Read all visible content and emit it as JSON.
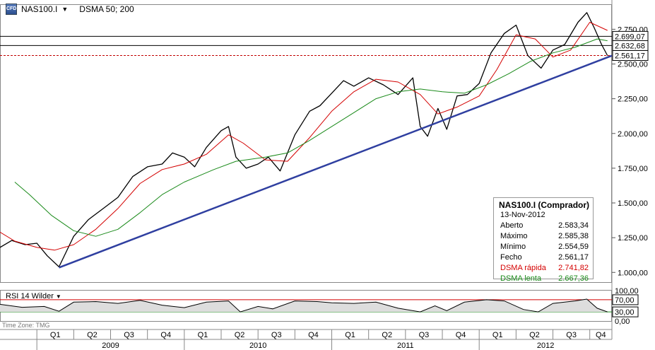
{
  "toolbar": {
    "symbol": "NAS100.I",
    "indicator": "DSMA 50; 200",
    "icon": "cfd-symbol-icon"
  },
  "info_panel": {
    "title": "NAS100.I (Comprador)",
    "date": "13-Nov-2012",
    "rows": [
      {
        "label": "Aberto",
        "value": "2.583,34",
        "color": "#000000"
      },
      {
        "label": "Máximo",
        "value": "2.585,38",
        "color": "#000000"
      },
      {
        "label": "Mínimo",
        "value": "2.554,59",
        "color": "#000000"
      },
      {
        "label": "Fecho",
        "value": "2.561,17",
        "color": "#000000"
      },
      {
        "label": "DSMA rápida",
        "value": "2.741,82",
        "color": "#d40000"
      },
      {
        "label": "DSMA lenta",
        "value": "2.667,36",
        "color": "#1a8a1a"
      }
    ]
  },
  "rsi": {
    "label": "RSI 14 Wilder",
    "upper": 70,
    "lower": 30,
    "axis_labels": [
      "100,00",
      "70,00",
      "30,00",
      "0,00"
    ]
  },
  "time_zone": "Time Zone: TMG",
  "chart_data": {
    "type": "line",
    "title": "NAS100.I",
    "y_tick_labels": [
      "1.000,00",
      "1.250,00",
      "1.500,00",
      "1.750,00",
      "2.000,00",
      "2.250,00",
      "2.500,00",
      "2.750,00"
    ],
    "y_ticks": [
      1000,
      1250,
      1500,
      1750,
      2000,
      2250,
      2500,
      2750
    ],
    "ylim": [
      925,
      2930
    ],
    "price_levels": [
      {
        "value": 2699.07,
        "label": "2.699,07"
      },
      {
        "value": 2632.68,
        "label": "2.632,68"
      },
      {
        "value": 2561.17,
        "label": "2.561,17"
      }
    ],
    "x_years": [
      "2009",
      "2010",
      "2011",
      "2012"
    ],
    "x_quarters": [
      "Q1",
      "Q2",
      "Q3",
      "Q4",
      "Q1",
      "Q2",
      "Q3",
      "Q4",
      "Q1",
      "Q2",
      "Q3",
      "Q4",
      "Q1",
      "Q2",
      "Q3",
      "Q4"
    ],
    "x_range": [
      2008.75,
      2012.9
    ],
    "series": [
      {
        "name": "NAS100.I",
        "color": "#000000",
        "points": [
          [
            2008.75,
            1180
          ],
          [
            2008.83,
            1230
          ],
          [
            2008.92,
            1200
          ],
          [
            2009.0,
            1210
          ],
          [
            2009.07,
            1120
          ],
          [
            2009.15,
            1040
          ],
          [
            2009.25,
            1260
          ],
          [
            2009.35,
            1380
          ],
          [
            2009.45,
            1460
          ],
          [
            2009.55,
            1540
          ],
          [
            2009.65,
            1690
          ],
          [
            2009.75,
            1760
          ],
          [
            2009.85,
            1780
          ],
          [
            2009.92,
            1860
          ],
          [
            2010.0,
            1830
          ],
          [
            2010.07,
            1760
          ],
          [
            2010.15,
            1900
          ],
          [
            2010.25,
            2020
          ],
          [
            2010.3,
            2050
          ],
          [
            2010.35,
            1830
          ],
          [
            2010.42,
            1750
          ],
          [
            2010.5,
            1780
          ],
          [
            2010.57,
            1830
          ],
          [
            2010.65,
            1730
          ],
          [
            2010.75,
            1990
          ],
          [
            2010.85,
            2160
          ],
          [
            2010.92,
            2200
          ],
          [
            2011.0,
            2290
          ],
          [
            2011.08,
            2380
          ],
          [
            2011.15,
            2340
          ],
          [
            2011.25,
            2400
          ],
          [
            2011.35,
            2350
          ],
          [
            2011.45,
            2280
          ],
          [
            2011.55,
            2400
          ],
          [
            2011.6,
            2050
          ],
          [
            2011.65,
            1980
          ],
          [
            2011.72,
            2180
          ],
          [
            2011.78,
            2030
          ],
          [
            2011.85,
            2270
          ],
          [
            2011.92,
            2280
          ],
          [
            2012.0,
            2360
          ],
          [
            2012.08,
            2580
          ],
          [
            2012.17,
            2720
          ],
          [
            2012.25,
            2780
          ],
          [
            2012.33,
            2560
          ],
          [
            2012.42,
            2470
          ],
          [
            2012.5,
            2600
          ],
          [
            2012.58,
            2640
          ],
          [
            2012.67,
            2800
          ],
          [
            2012.73,
            2870
          ],
          [
            2012.78,
            2760
          ],
          [
            2012.83,
            2640
          ],
          [
            2012.87,
            2561
          ]
        ]
      },
      {
        "name": "DSMA rápida",
        "color": "#d40000",
        "points": [
          [
            2008.75,
            1290
          ],
          [
            2008.85,
            1225
          ],
          [
            2009.0,
            1180
          ],
          [
            2009.12,
            1160
          ],
          [
            2009.25,
            1200
          ],
          [
            2009.4,
            1310
          ],
          [
            2009.55,
            1460
          ],
          [
            2009.7,
            1640
          ],
          [
            2009.85,
            1740
          ],
          [
            2010.0,
            1780
          ],
          [
            2010.15,
            1850
          ],
          [
            2010.3,
            1990
          ],
          [
            2010.4,
            1930
          ],
          [
            2010.55,
            1810
          ],
          [
            2010.7,
            1800
          ],
          [
            2010.85,
            1970
          ],
          [
            2011.0,
            2160
          ],
          [
            2011.15,
            2300
          ],
          [
            2011.3,
            2390
          ],
          [
            2011.45,
            2370
          ],
          [
            2011.6,
            2280
          ],
          [
            2011.72,
            2140
          ],
          [
            2011.85,
            2190
          ],
          [
            2012.0,
            2270
          ],
          [
            2012.12,
            2460
          ],
          [
            2012.25,
            2710
          ],
          [
            2012.38,
            2680
          ],
          [
            2012.5,
            2550
          ],
          [
            2012.62,
            2600
          ],
          [
            2012.75,
            2800
          ],
          [
            2012.87,
            2741.82
          ]
        ]
      },
      {
        "name": "DSMA lenta",
        "color": "#1a8a1a",
        "points": [
          [
            2008.85,
            1650
          ],
          [
            2008.95,
            1560
          ],
          [
            2009.1,
            1410
          ],
          [
            2009.25,
            1300
          ],
          [
            2009.4,
            1260
          ],
          [
            2009.55,
            1310
          ],
          [
            2009.7,
            1430
          ],
          [
            2009.85,
            1560
          ],
          [
            2010.0,
            1650
          ],
          [
            2010.2,
            1740
          ],
          [
            2010.35,
            1800
          ],
          [
            2010.55,
            1830
          ],
          [
            2010.7,
            1860
          ],
          [
            2010.85,
            1950
          ],
          [
            2011.0,
            2050
          ],
          [
            2011.15,
            2150
          ],
          [
            2011.3,
            2250
          ],
          [
            2011.45,
            2300
          ],
          [
            2011.6,
            2320
          ],
          [
            2011.75,
            2300
          ],
          [
            2011.9,
            2290
          ],
          [
            2012.05,
            2350
          ],
          [
            2012.2,
            2430
          ],
          [
            2012.35,
            2520
          ],
          [
            2012.5,
            2580
          ],
          [
            2012.65,
            2620
          ],
          [
            2012.8,
            2680
          ],
          [
            2012.87,
            2667.36
          ]
        ]
      },
      {
        "name": "trendline",
        "color": "#2f3fa0",
        "points": [
          [
            2009.15,
            1035
          ],
          [
            2012.9,
            2560
          ]
        ]
      }
    ],
    "rsi_series": [
      [
        2008.75,
        55
      ],
      [
        2008.9,
        45
      ],
      [
        2009.05,
        48
      ],
      [
        2009.15,
        32
      ],
      [
        2009.25,
        62
      ],
      [
        2009.4,
        64
      ],
      [
        2009.55,
        58
      ],
      [
        2009.7,
        68
      ],
      [
        2009.85,
        52
      ],
      [
        2010.0,
        44
      ],
      [
        2010.15,
        62
      ],
      [
        2010.3,
        66
      ],
      [
        2010.38,
        30
      ],
      [
        2010.5,
        48
      ],
      [
        2010.6,
        40
      ],
      [
        2010.75,
        66
      ],
      [
        2010.9,
        64
      ],
      [
        2011.0,
        60
      ],
      [
        2011.15,
        58
      ],
      [
        2011.3,
        62
      ],
      [
        2011.45,
        42
      ],
      [
        2011.6,
        30
      ],
      [
        2011.7,
        50
      ],
      [
        2011.78,
        34
      ],
      [
        2011.9,
        62
      ],
      [
        2012.05,
        70
      ],
      [
        2012.17,
        66
      ],
      [
        2012.3,
        38
      ],
      [
        2012.4,
        30
      ],
      [
        2012.5,
        58
      ],
      [
        2012.65,
        66
      ],
      [
        2012.73,
        72
      ],
      [
        2012.8,
        42
      ],
      [
        2012.87,
        30
      ]
    ]
  }
}
